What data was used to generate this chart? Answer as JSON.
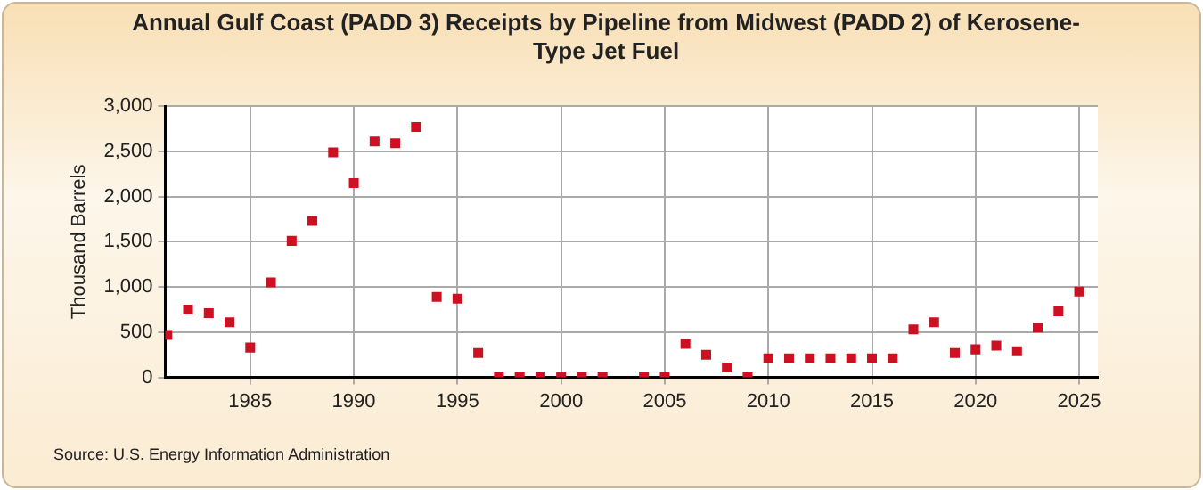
{
  "chart_data": {
    "type": "scatter",
    "title": "Annual Gulf Coast (PADD 3) Receipts by Pipeline from Midwest (PADD 2) of Kerosene-Type Jet Fuel",
    "ylabel": "Thousand Barrels",
    "x": [
      1981,
      1982,
      1983,
      1984,
      1985,
      1986,
      1987,
      1988,
      1989,
      1990,
      1991,
      1992,
      1993,
      1994,
      1995,
      1996,
      1997,
      1998,
      1999,
      2000,
      2001,
      2002,
      2003,
      2004,
      2005,
      2006,
      2007,
      2008,
      2009,
      2010,
      2011,
      2012,
      2013,
      2014,
      2015,
      2016,
      2017,
      2018,
      2019,
      2020,
      2021,
      2022,
      2023,
      2024,
      2025
    ],
    "series": [
      {
        "color": "#cc1122",
        "values": [
          470,
          750,
          710,
          610,
          330,
          1050,
          1510,
          1730,
          2490,
          2150,
          2610,
          2590,
          2770,
          890,
          870,
          270,
          0,
          0,
          0,
          0,
          0,
          0,
          null,
          0,
          0,
          370,
          250,
          110,
          0,
          210,
          210,
          210,
          210,
          210,
          210,
          210,
          530,
          610,
          270,
          310,
          350,
          290,
          550,
          730,
          950
        ]
      }
    ],
    "xlim": [
      1980.9,
      2025.9
    ],
    "xticks": [
      1985,
      1990,
      1995,
      2000,
      2005,
      2010,
      2015,
      2020,
      2025
    ],
    "ylim": [
      0,
      3000
    ],
    "yticks": [
      0,
      500,
      {
        "value": 1000,
        "label": "1,000"
      },
      {
        "value": 1500,
        "label": "1,500"
      },
      {
        "value": 2000,
        "label": "2,000"
      },
      {
        "value": 2500,
        "label": "2,500"
      },
      {
        "value": 3000,
        "label": "3,000"
      }
    ],
    "grid": true,
    "marker": "square",
    "legend": false,
    "annotations": [
      "Source: U.S. Energy Information Administration"
    ]
  }
}
